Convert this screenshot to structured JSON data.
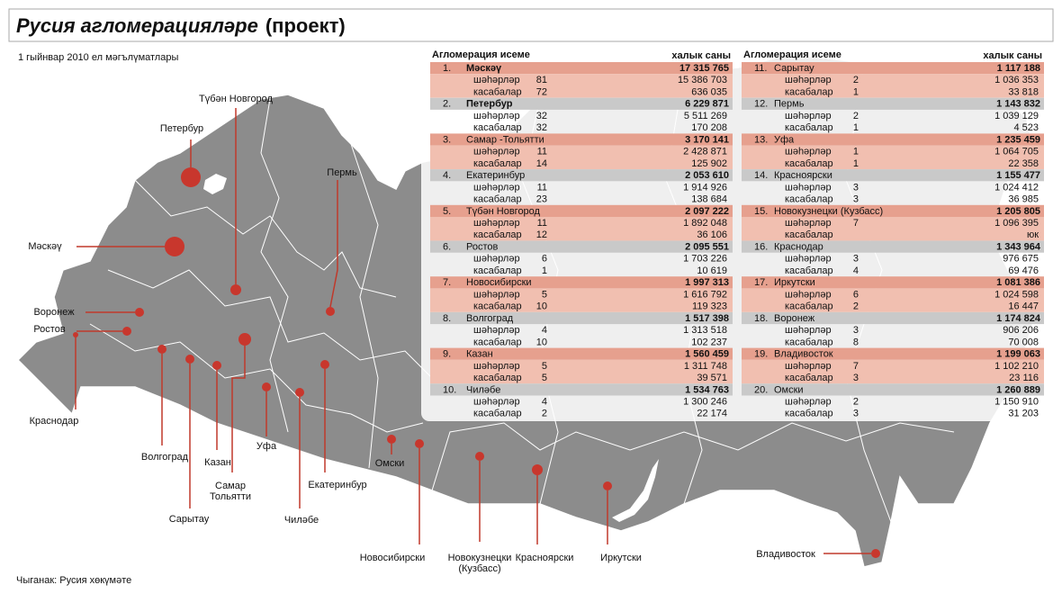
{
  "header": {
    "title": "Русия агломерацияләре",
    "title_suffix": "(проект)",
    "subtitle": "1 гыйнвар 2010 ел мәгълүматлары"
  },
  "map": {
    "labels": [
      "Түбән Новгород",
      "Петербур",
      "Пермь",
      "Мәскәү",
      "Воронеж",
      "Ростов",
      "Краснодар",
      "Волгоград",
      "Сарытау",
      "Самар Тольятти",
      "Казан",
      "Уфа",
      "Чиләбе",
      "Екатеринбур",
      "Омски",
      "Новосибирски",
      "Новокузнецки (Кузбасс)",
      "Красноярски",
      "Иркутски",
      "Владивосток"
    ]
  },
  "table": {
    "columns": [
      "Агломерация исеме",
      "халык саны"
    ],
    "rows": [
      {
        "rank": "1.",
        "name": "Мәскәү",
        "total": "17 315 765",
        "sub": [
          {
            "label": "шәһәрләр",
            "count": "81",
            "pop": "15 386 703"
          },
          {
            "label": "касабалар",
            "count": "72",
            "pop": "636 035"
          }
        ]
      },
      {
        "rank": "2.",
        "name": "Петербур",
        "total": "6 229 871",
        "sub": [
          {
            "label": "шәһәрләр",
            "count": "32",
            "pop": "5 511 269"
          },
          {
            "label": "касабалар",
            "count": "32",
            "pop": "170 208"
          }
        ]
      },
      {
        "rank": "3.",
        "name": "Самар -Тольятти",
        "total": "3 170 141",
        "sub": [
          {
            "label": "шәһәрләр",
            "count": "11",
            "pop": "2 428 871"
          },
          {
            "label": "касабалар",
            "count": "14",
            "pop": "125 902"
          }
        ]
      },
      {
        "rank": "4.",
        "name": "Екатеринбур",
        "total": "2 053 610",
        "sub": [
          {
            "label": "шәһәрләр",
            "count": "11",
            "pop": "1 914 926"
          },
          {
            "label": "касабалар",
            "count": "23",
            "pop": "138 684"
          }
        ]
      },
      {
        "rank": "5.",
        "name": "Түбән Новгород",
        "total": "2 097 222",
        "sub": [
          {
            "label": "шәһәрләр",
            "count": "11",
            "pop": "1 892 048"
          },
          {
            "label": "касабалар",
            "count": "12",
            "pop": "36 106"
          }
        ]
      },
      {
        "rank": "6.",
        "name": "Ростов",
        "total": "2 095 551",
        "sub": [
          {
            "label": "шәһәрләр",
            "count": "6",
            "pop": "1 703 226"
          },
          {
            "label": "касабалар",
            "count": "1",
            "pop": "10 619"
          }
        ]
      },
      {
        "rank": "7.",
        "name": "Новосибирски",
        "total": "1 997 313",
        "sub": [
          {
            "label": "шәһәрләр",
            "count": "5",
            "pop": "1 616 792"
          },
          {
            "label": "касабалар",
            "count": "10",
            "pop": "119 323"
          }
        ]
      },
      {
        "rank": "8.",
        "name": "Волгоград",
        "total": "1 517 398",
        "sub": [
          {
            "label": "шәһәрләр",
            "count": "4",
            "pop": "1 313 518"
          },
          {
            "label": "касабалар",
            "count": "10",
            "pop": "102 237"
          }
        ]
      },
      {
        "rank": "9.",
        "name": "Казан",
        "total": "1 560 459",
        "sub": [
          {
            "label": "шәһәрләр",
            "count": "5",
            "pop": "1 311 748"
          },
          {
            "label": "касабалар",
            "count": "5",
            "pop": "39 571"
          }
        ]
      },
      {
        "rank": "10.",
        "name": "Чиләбе",
        "total": "1 534 763",
        "sub": [
          {
            "label": "шәһәрләр",
            "count": "4",
            "pop": "1 300 246"
          },
          {
            "label": "касабалар",
            "count": "2",
            "pop": "22 174"
          }
        ]
      },
      {
        "rank": "11.",
        "name": "Сарытау",
        "total": "1 117 188",
        "sub": [
          {
            "label": "шәһәрләр",
            "count": "2",
            "pop": "1 036 353"
          },
          {
            "label": "касабалар",
            "count": "1",
            "pop": "33 818"
          }
        ]
      },
      {
        "rank": "12.",
        "name": "Пермь",
        "total": "1 143 832",
        "sub": [
          {
            "label": "шәһәрләр",
            "count": "2",
            "pop": "1 039 129"
          },
          {
            "label": "касабалар",
            "count": "1",
            "pop": "4 523"
          }
        ]
      },
      {
        "rank": "13.",
        "name": "Уфа",
        "total": "1 235 459",
        "sub": [
          {
            "label": "шәһәрләр",
            "count": "1",
            "pop": "1 064 705"
          },
          {
            "label": "касабалар",
            "count": "1",
            "pop": "22 358"
          }
        ]
      },
      {
        "rank": "14.",
        "name": "Красноярски",
        "total": "1 155 477",
        "sub": [
          {
            "label": "шәһәрләр",
            "count": "3",
            "pop": "1 024 412"
          },
          {
            "label": "касабалар",
            "count": "3",
            "pop": "36 985"
          }
        ]
      },
      {
        "rank": "15.",
        "name": "Новокузнецки (Кузбасс)",
        "total": "1 205 805",
        "sub": [
          {
            "label": "шәһәрләр",
            "count": "7",
            "pop": "1 096 395"
          },
          {
            "label": "касабалар",
            "pop": "юк"
          }
        ]
      },
      {
        "rank": "16.",
        "name": "Краснодар",
        "total": "1 343 964",
        "sub": [
          {
            "label": "шәһәрләр",
            "count": "3",
            "pop": "976 675"
          },
          {
            "label": "касабалар",
            "count": "4",
            "pop": "69 476"
          }
        ]
      },
      {
        "rank": "17.",
        "name": "Иркутски",
        "total": "1 081 386",
        "sub": [
          {
            "label": "шәһәрләр",
            "count": "6",
            "pop": "1 024 598"
          },
          {
            "label": "касабалар",
            "count": "2",
            "pop": "16 447"
          }
        ]
      },
      {
        "rank": "18.",
        "name": "Воронеж",
        "total": "1 174 824",
        "sub": [
          {
            "label": "шәһәрләр",
            "count": "3",
            "pop": "906 206"
          },
          {
            "label": "касабалар",
            "count": "8",
            "pop": "70 008"
          }
        ]
      },
      {
        "rank": "19.",
        "name": "Владивосток",
        "total": "1 199 063",
        "sub": [
          {
            "label": "шәһәрләр",
            "count": "7",
            "pop": "1 102 210"
          },
          {
            "label": "касабалар",
            "count": "3",
            "pop": "23 116"
          }
        ]
      },
      {
        "rank": "20.",
        "name": "Омски",
        "total": "1 260 889",
        "sub": [
          {
            "label": "шәһәрләр",
            "count": "2",
            "pop": "1 150 910"
          },
          {
            "label": "касабалар",
            "count": "3",
            "pop": "31 203"
          }
        ]
      }
    ]
  },
  "footer": {
    "source": "Чыганак: Русия хөкүмәте"
  }
}
